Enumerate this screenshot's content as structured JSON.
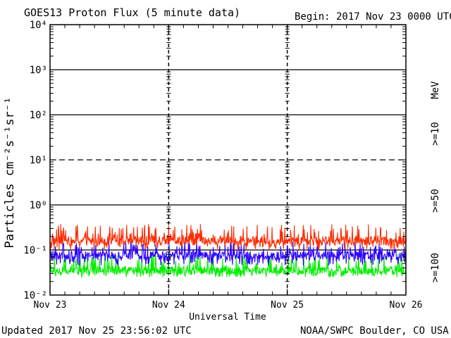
{
  "header": {
    "title": "GOES13 Proton Flux (5 minute data)",
    "begin": "Begin: 2017 Nov 23 0000 UTC"
  },
  "footer": {
    "updated": "Updated 2017 Nov 25 23:56:02 UTC",
    "source": "NOAA/SWPC Boulder, CO USA"
  },
  "chart_data": {
    "type": "line",
    "ylabel": "Particles cm⁻²s⁻¹sr⁻¹",
    "xlabel": "Universal Time",
    "yscale": "log",
    "ylim": [
      0.01,
      10000
    ],
    "xlim": [
      "2017-11-23",
      "2017-11-26"
    ],
    "x_ticks": [
      "Nov 23",
      "Nov 24",
      "Nov 25",
      "Nov 26"
    ],
    "y_ticks": [
      "10⁻²",
      "10⁻¹",
      "10⁰",
      "10¹",
      "10²",
      "10³",
      "10⁴"
    ],
    "threshold_lines": [
      {
        "value": 0.1,
        "style": "solid"
      },
      {
        "value": 1,
        "style": "solid"
      },
      {
        "value": 10,
        "style": "dashed"
      },
      {
        "value": 100,
        "style": "solid"
      },
      {
        "value": 1000,
        "style": "solid"
      }
    ],
    "unit_label": "MeV",
    "series": [
      {
        "name": ">=10",
        "color": "#ff2a00",
        "baseline": 0.16,
        "min": 0.1,
        "max": 0.38
      },
      {
        "name": ">=50",
        "color": "#2b00ff",
        "baseline": 0.075,
        "min": 0.045,
        "max": 0.16
      },
      {
        "name": ">=100",
        "color": "#00ee00",
        "baseline": 0.035,
        "min": 0.025,
        "max": 0.085
      }
    ]
  }
}
